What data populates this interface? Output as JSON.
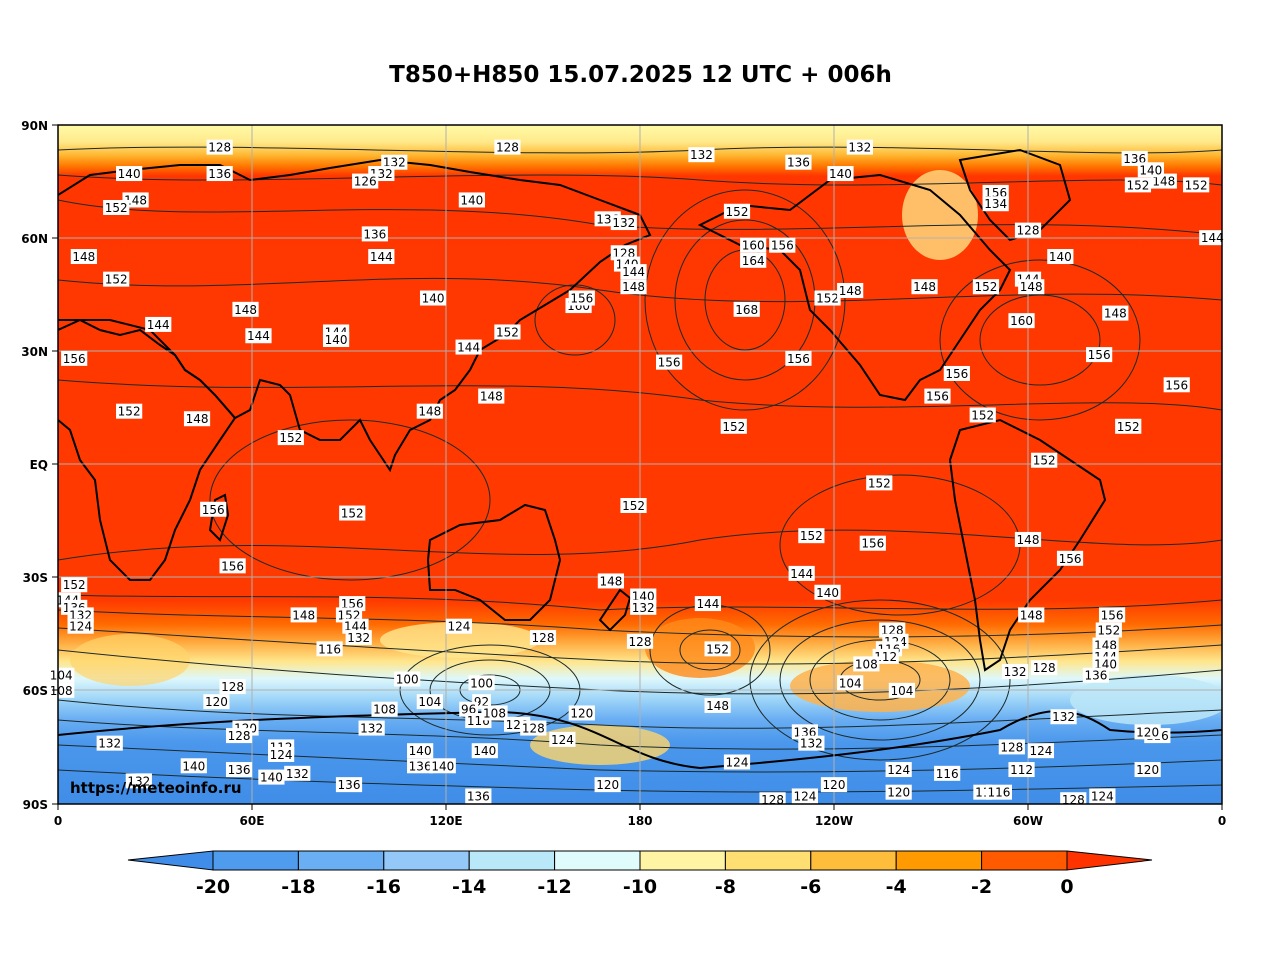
{
  "title": "T850+H850 15.07.2025 12 UTC + 006h",
  "watermark": "https://meteoinfo.ru",
  "lat_ticks": [
    "90N",
    "60N",
    "30N",
    "EQ",
    "30S",
    "60S",
    "90S"
  ],
  "lon_ticks": [
    "0",
    "60E",
    "120E",
    "180",
    "120W",
    "60W",
    "0"
  ],
  "colorbar": {
    "labels": [
      "-20",
      "-18",
      "-16",
      "-14",
      "-12",
      "-10",
      "-8",
      "-6",
      "-4",
      "-2",
      "0"
    ],
    "colors": [
      "#3f8de8",
      "#4f9bee",
      "#6aaef3",
      "#94c8f8",
      "#b9e8f8",
      "#e0fbfc",
      "#fff3a4",
      "#ffdf72",
      "#ffbd3c",
      "#ff9a00",
      "#ff5a00",
      "#ff3300"
    ]
  },
  "contour_labels": [
    {
      "lon": 50,
      "lat": 84,
      "text": "128"
    },
    {
      "lon": 139,
      "lat": 84,
      "text": "128"
    },
    {
      "lon": 248,
      "lat": 84,
      "text": "132"
    },
    {
      "lon": 199,
      "lat": 82,
      "text": "132"
    },
    {
      "lon": 229,
      "lat": 80,
      "text": "136"
    },
    {
      "lon": 333,
      "lat": 81,
      "text": "136"
    },
    {
      "lon": 22,
      "lat": 77,
      "text": "140"
    },
    {
      "lon": 50,
      "lat": 77,
      "text": "136"
    },
    {
      "lon": 104,
      "lat": 80,
      "text": "132"
    },
    {
      "lon": 100,
      "lat": 77,
      "text": "132"
    },
    {
      "lon": 95,
      "lat": 75,
      "text": "126"
    },
    {
      "lon": 24,
      "lat": 70,
      "text": "148"
    },
    {
      "lon": 18,
      "lat": 68,
      "text": "152"
    },
    {
      "lon": 128,
      "lat": 70,
      "text": "140"
    },
    {
      "lon": 170,
      "lat": 65,
      "text": "136"
    },
    {
      "lon": 175,
      "lat": 64,
      "text": "132"
    },
    {
      "lon": 210,
      "lat": 67,
      "text": "152"
    },
    {
      "lon": 242,
      "lat": 77,
      "text": "140"
    },
    {
      "lon": 290,
      "lat": 72,
      "text": "156"
    },
    {
      "lon": 290,
      "lat": 69,
      "text": "134"
    },
    {
      "lon": 300,
      "lat": 62,
      "text": "128"
    },
    {
      "lon": 334,
      "lat": 74,
      "text": "152"
    },
    {
      "lon": 342,
      "lat": 75,
      "text": "148"
    },
    {
      "lon": 352,
      "lat": 74,
      "text": "152"
    },
    {
      "lon": 338,
      "lat": 78,
      "text": "140"
    },
    {
      "lon": 357,
      "lat": 60,
      "text": "144"
    },
    {
      "lon": 98,
      "lat": 61,
      "text": "136"
    },
    {
      "lon": 100,
      "lat": 55,
      "text": "144"
    },
    {
      "lon": 8,
      "lat": 55,
      "text": "148"
    },
    {
      "lon": 18,
      "lat": 49,
      "text": "152"
    },
    {
      "lon": 58,
      "lat": 41,
      "text": "148"
    },
    {
      "lon": 31,
      "lat": 37,
      "text": "144"
    },
    {
      "lon": 62,
      "lat": 34,
      "text": "144"
    },
    {
      "lon": 86,
      "lat": 35,
      "text": "144"
    },
    {
      "lon": 86,
      "lat": 33,
      "text": "140"
    },
    {
      "lon": 116,
      "lat": 44,
      "text": "140"
    },
    {
      "lon": 175,
      "lat": 56,
      "text": "128"
    },
    {
      "lon": 176,
      "lat": 53,
      "text": "140"
    },
    {
      "lon": 178,
      "lat": 51,
      "text": "144"
    },
    {
      "lon": 178,
      "lat": 47,
      "text": "148"
    },
    {
      "lon": 161,
      "lat": 42,
      "text": "160"
    },
    {
      "lon": 162,
      "lat": 44,
      "text": "156"
    },
    {
      "lon": 139,
      "lat": 35,
      "text": "152"
    },
    {
      "lon": 127,
      "lat": 31,
      "text": "144"
    },
    {
      "lon": 215,
      "lat": 58,
      "text": "160"
    },
    {
      "lon": 215,
      "lat": 54,
      "text": "164"
    },
    {
      "lon": 224,
      "lat": 58,
      "text": "156"
    },
    {
      "lon": 213,
      "lat": 41,
      "text": "168"
    },
    {
      "lon": 238,
      "lat": 44,
      "text": "152"
    },
    {
      "lon": 245,
      "lat": 46,
      "text": "148"
    },
    {
      "lon": 268,
      "lat": 47,
      "text": "148"
    },
    {
      "lon": 287,
      "lat": 47,
      "text": "152"
    },
    {
      "lon": 300,
      "lat": 49,
      "text": "144"
    },
    {
      "lon": 301,
      "lat": 47,
      "text": "148"
    },
    {
      "lon": 310,
      "lat": 55,
      "text": "140"
    },
    {
      "lon": 298,
      "lat": 38,
      "text": "160"
    },
    {
      "lon": 327,
      "lat": 40,
      "text": "148"
    },
    {
      "lon": 322,
      "lat": 29,
      "text": "156"
    },
    {
      "lon": 346,
      "lat": 21,
      "text": "156"
    },
    {
      "lon": 5,
      "lat": 28,
      "text": "156"
    },
    {
      "lon": 22,
      "lat": 14,
      "text": "152"
    },
    {
      "lon": 43,
      "lat": 12,
      "text": "148"
    },
    {
      "lon": 72,
      "lat": 7,
      "text": "152"
    },
    {
      "lon": 115,
      "lat": 14,
      "text": "148"
    },
    {
      "lon": 134,
      "lat": 18,
      "text": "148"
    },
    {
      "lon": 189,
      "lat": 27,
      "text": "156"
    },
    {
      "lon": 229,
      "lat": 28,
      "text": "156"
    },
    {
      "lon": 278,
      "lat": 24,
      "text": "156"
    },
    {
      "lon": 272,
      "lat": 18,
      "text": "156"
    },
    {
      "lon": 286,
      "lat": 13,
      "text": "152"
    },
    {
      "lon": 209,
      "lat": 10,
      "text": "152"
    },
    {
      "lon": 331,
      "lat": 10,
      "text": "152"
    },
    {
      "lon": 305,
      "lat": 1,
      "text": "152"
    },
    {
      "lon": 254,
      "lat": -5,
      "text": "152"
    },
    {
      "lon": 178,
      "lat": -11,
      "text": "152"
    },
    {
      "lon": 48,
      "lat": -12,
      "text": "156"
    },
    {
      "lon": 91,
      "lat": -13,
      "text": "152"
    },
    {
      "lon": 233,
      "lat": -19,
      "text": "152"
    },
    {
      "lon": 252,
      "lat": -21,
      "text": "156"
    },
    {
      "lon": 300,
      "lat": -20,
      "text": "148"
    },
    {
      "lon": 313,
      "lat": -25,
      "text": "156"
    },
    {
      "lon": 54,
      "lat": -27,
      "text": "156"
    },
    {
      "lon": 5,
      "lat": -32,
      "text": "152"
    },
    {
      "lon": 3,
      "lat": -36,
      "text": "144"
    },
    {
      "lon": 5,
      "lat": -38,
      "text": "136"
    },
    {
      "lon": 7,
      "lat": -40,
      "text": "132"
    },
    {
      "lon": 7,
      "lat": -43,
      "text": "124"
    },
    {
      "lon": 171,
      "lat": -31,
      "text": "148"
    },
    {
      "lon": 181,
      "lat": -35,
      "text": "140"
    },
    {
      "lon": 181,
      "lat": -38,
      "text": "132"
    },
    {
      "lon": 180,
      "lat": -47,
      "text": "128"
    },
    {
      "lon": 230,
      "lat": -29,
      "text": "144"
    },
    {
      "lon": 238,
      "lat": -34,
      "text": "140"
    },
    {
      "lon": 201,
      "lat": -37,
      "text": "144"
    },
    {
      "lon": 204,
      "lat": -49,
      "text": "152"
    },
    {
      "lon": 76,
      "lat": -40,
      "text": "148"
    },
    {
      "lon": 91,
      "lat": -37,
      "text": "156"
    },
    {
      "lon": 90,
      "lat": -40,
      "text": "152"
    },
    {
      "lon": 92,
      "lat": -43,
      "text": "144"
    },
    {
      "lon": 93,
      "lat": -46,
      "text": "132"
    },
    {
      "lon": 84,
      "lat": -49,
      "text": "116"
    },
    {
      "lon": 124,
      "lat": -43,
      "text": "124"
    },
    {
      "lon": 150,
      "lat": -46,
      "text": "128"
    },
    {
      "lon": 258,
      "lat": -44,
      "text": "128"
    },
    {
      "lon": 259,
      "lat": -47,
      "text": "124"
    },
    {
      "lon": 257,
      "lat": -49,
      "text": "116"
    },
    {
      "lon": 256,
      "lat": -51,
      "text": "112"
    },
    {
      "lon": 250,
      "lat": -53,
      "text": "108"
    },
    {
      "lon": 245,
      "lat": -58,
      "text": "104"
    },
    {
      "lon": 261,
      "lat": -60,
      "text": "104"
    },
    {
      "lon": 301,
      "lat": -40,
      "text": "148"
    },
    {
      "lon": 326,
      "lat": -40,
      "text": "156"
    },
    {
      "lon": 325,
      "lat": -44,
      "text": "152"
    },
    {
      "lon": 324,
      "lat": -48,
      "text": "148"
    },
    {
      "lon": 324,
      "lat": -51,
      "text": "144"
    },
    {
      "lon": 324,
      "lat": -53,
      "text": "140"
    },
    {
      "lon": 321,
      "lat": -56,
      "text": "136"
    },
    {
      "lon": 296,
      "lat": -55,
      "text": "132"
    },
    {
      "lon": 305,
      "lat": -54,
      "text": "128"
    },
    {
      "lon": 1,
      "lat": -56,
      "text": "104"
    },
    {
      "lon": 1,
      "lat": -60,
      "text": "108"
    },
    {
      "lon": 54,
      "lat": -59,
      "text": "128"
    },
    {
      "lon": 49,
      "lat": -63,
      "text": "120"
    },
    {
      "lon": 108,
      "lat": -57,
      "text": "100"
    },
    {
      "lon": 115,
      "lat": -63,
      "text": "104"
    },
    {
      "lon": 101,
      "lat": -65,
      "text": "108"
    },
    {
      "lon": 131,
      "lat": -58,
      "text": "100"
    },
    {
      "lon": 131,
      "lat": -63,
      "text": "92"
    },
    {
      "lon": 127,
      "lat": -65,
      "text": "96"
    },
    {
      "lon": 130,
      "lat": -68,
      "text": "116"
    },
    {
      "lon": 135,
      "lat": -66,
      "text": "108"
    },
    {
      "lon": 142,
      "lat": -69,
      "text": "120"
    },
    {
      "lon": 147,
      "lat": -70,
      "text": "128"
    },
    {
      "lon": 162,
      "lat": -66,
      "text": "120"
    },
    {
      "lon": 156,
      "lat": -73,
      "text": "124"
    },
    {
      "lon": 204,
      "lat": -64,
      "text": "148"
    },
    {
      "lon": 231,
      "lat": -71,
      "text": "136"
    },
    {
      "lon": 233,
      "lat": -74,
      "text": "132"
    },
    {
      "lon": 210,
      "lat": -79,
      "text": "124"
    },
    {
      "lon": 58,
      "lat": -70,
      "text": "120"
    },
    {
      "lon": 56,
      "lat": -72,
      "text": "128"
    },
    {
      "lon": 69,
      "lat": -75,
      "text": "112"
    },
    {
      "lon": 69,
      "lat": -77,
      "text": "124"
    },
    {
      "lon": 97,
      "lat": -70,
      "text": "132"
    },
    {
      "lon": 112,
      "lat": -76,
      "text": "140"
    },
    {
      "lon": 112,
      "lat": -80,
      "text": "136"
    },
    {
      "lon": 119,
      "lat": -80,
      "text": "140"
    },
    {
      "lon": 132,
      "lat": -76,
      "text": "140"
    },
    {
      "lon": 16,
      "lat": -74,
      "text": "132"
    },
    {
      "lon": 42,
      "lat": -80,
      "text": "140"
    },
    {
      "lon": 56,
      "lat": -81,
      "text": "136"
    },
    {
      "lon": 66,
      "lat": -83,
      "text": "140"
    },
    {
      "lon": 74,
      "lat": -82,
      "text": "132"
    },
    {
      "lon": 25,
      "lat": -84,
      "text": "132"
    },
    {
      "lon": 90,
      "lat": -85,
      "text": "136"
    },
    {
      "lon": 130,
      "lat": -88,
      "text": "136"
    },
    {
      "lon": 170,
      "lat": -85,
      "text": "120"
    },
    {
      "lon": 240,
      "lat": -85,
      "text": "120"
    },
    {
      "lon": 260,
      "lat": -81,
      "text": "124"
    },
    {
      "lon": 260,
      "lat": -87,
      "text": "120"
    },
    {
      "lon": 275,
      "lat": -82,
      "text": "116"
    },
    {
      "lon": 286,
      "lat": -87,
      "text": "11"
    },
    {
      "lon": 291,
      "lat": -87,
      "text": "116"
    },
    {
      "lon": 298,
      "lat": -81,
      "text": "112"
    },
    {
      "lon": 295,
      "lat": -75,
      "text": "128"
    },
    {
      "lon": 304,
      "lat": -76,
      "text": "124"
    },
    {
      "lon": 311,
      "lat": -67,
      "text": "132"
    },
    {
      "lon": 340,
      "lat": -72,
      "text": "116"
    },
    {
      "lon": 337,
      "lat": -71,
      "text": "120"
    },
    {
      "lon": 337,
      "lat": -81,
      "text": "120"
    },
    {
      "lon": 221,
      "lat": -89,
      "text": "128"
    },
    {
      "lon": 231,
      "lat": -88,
      "text": "124"
    },
    {
      "lon": 314,
      "lat": -89,
      "text": "128"
    },
    {
      "lon": 323,
      "lat": -88,
      "text": "124"
    }
  ]
}
